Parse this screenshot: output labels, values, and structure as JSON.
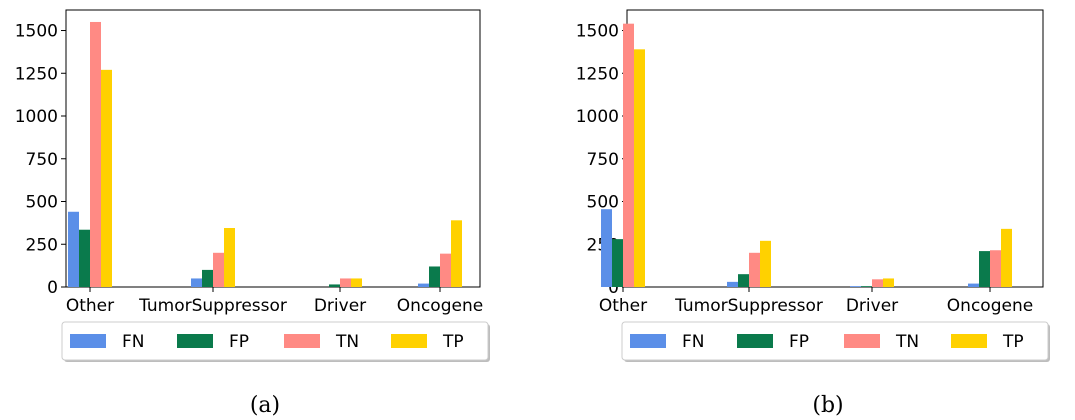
{
  "series_names": [
    "FN",
    "FP",
    "TN",
    "TP"
  ],
  "series_colors": [
    "#5b8fe8",
    "#0a7a4c",
    "#ff8a84",
    "#ffd100"
  ],
  "chart_data": [
    {
      "type": "bar",
      "caption": "(a)",
      "categories": [
        "Other",
        "TumorSuppressor",
        "Driver",
        "Oncogene"
      ],
      "series": [
        {
          "name": "FN",
          "values": [
            440,
            50,
            0,
            20
          ]
        },
        {
          "name": "FP",
          "values": [
            335,
            100,
            15,
            120
          ]
        },
        {
          "name": "TN",
          "values": [
            1550,
            200,
            50,
            195
          ]
        },
        {
          "name": "TP",
          "values": [
            1270,
            345,
            50,
            390
          ]
        }
      ],
      "yticks": [
        0,
        250,
        500,
        750,
        1000,
        1250,
        1500
      ],
      "ylim": [
        0,
        1620
      ],
      "legend": "below",
      "grid": false
    },
    {
      "type": "bar",
      "caption": "(b)",
      "categories": [
        "Other",
        "TumorSuppressor",
        "Driver",
        "Oncogene"
      ],
      "series": [
        {
          "name": "FN",
          "values": [
            455,
            30,
            5,
            20
          ]
        },
        {
          "name": "FP",
          "values": [
            280,
            75,
            5,
            210
          ]
        },
        {
          "name": "TN",
          "values": [
            1540,
            200,
            45,
            215
          ]
        },
        {
          "name": "TP",
          "values": [
            1390,
            270,
            50,
            340
          ]
        }
      ],
      "yticks": [
        0,
        250,
        500,
        750,
        1000,
        1250,
        1500
      ],
      "ylim": [
        0,
        1620
      ],
      "legend": "below",
      "grid": false
    }
  ]
}
